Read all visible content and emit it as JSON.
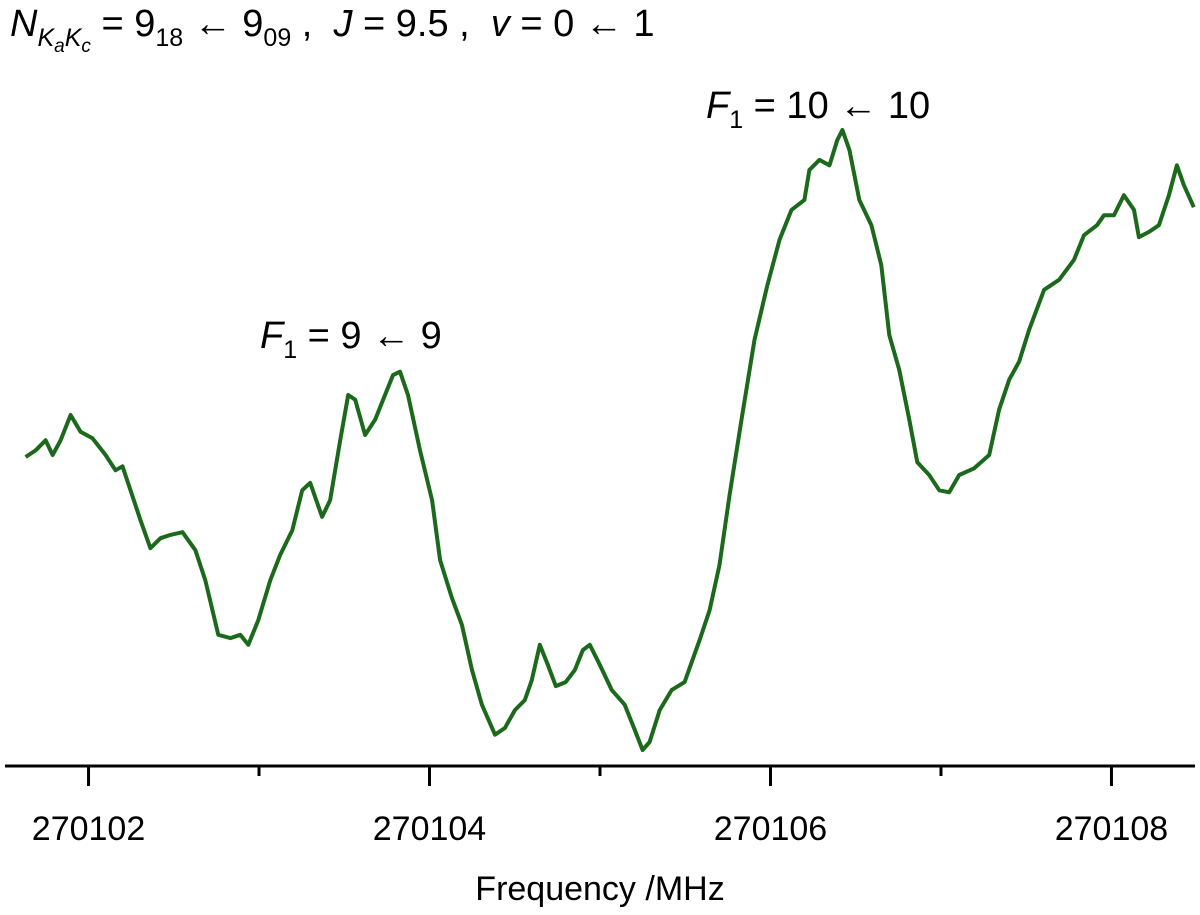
{
  "chart_data": {
    "type": "line",
    "title": [
      "N",
      "K",
      "a",
      "K",
      "c",
      " = 9",
      "18",
      " ← 9",
      "09",
      " ,  ",
      "J",
      " = 9.5 ,  ",
      "v",
      " = 0 ← 1"
    ],
    "annotations": [
      [
        "F",
        "1",
        " = 9 ← 9"
      ],
      [
        "F",
        "1",
        " = 10 ← 10"
      ]
    ],
    "x_label": "Frequency /MHz",
    "color": "#1b6a1b",
    "xlim": [
      270101.51,
      270108.49
    ],
    "xticks": [
      270102,
      270104,
      270106,
      270108
    ],
    "xminor": [
      270103,
      270105,
      270107
    ],
    "ylim": [
      0,
      100
    ],
    "x": [
      270101.631,
      270101.69,
      270101.748,
      270101.789,
      270101.836,
      270101.895,
      270101.953,
      270102.023,
      270102.1,
      270102.158,
      270102.199,
      270102.246,
      270102.305,
      270102.363,
      270102.422,
      270102.48,
      270102.551,
      270102.627,
      270102.685,
      270102.761,
      270102.832,
      270102.89,
      270102.937,
      270102.996,
      270103.066,
      270103.124,
      270103.195,
      270103.253,
      270103.3,
      270103.37,
      270103.417,
      270103.476,
      270103.523,
      270103.564,
      270103.622,
      270103.681,
      270103.739,
      270103.786,
      270103.827,
      270103.874,
      270103.944,
      270104.015,
      270104.062,
      270104.132,
      270104.19,
      270104.249,
      270104.307,
      270104.384,
      270104.442,
      270104.501,
      270104.559,
      270104.6,
      270104.647,
      270104.694,
      270104.741,
      270104.799,
      270104.852,
      270104.899,
      270104.94,
      270104.999,
      270105.069,
      270105.145,
      270105.204,
      270105.25,
      270105.291,
      270105.35,
      270105.42,
      270105.496,
      270105.584,
      270105.643,
      270105.701,
      270105.76,
      270105.83,
      270105.906,
      270105.982,
      270106.053,
      270106.123,
      270106.199,
      270106.228,
      270106.287,
      270106.346,
      270106.392,
      270106.422,
      270106.463,
      270106.521,
      270106.592,
      270106.65,
      270106.697,
      270106.755,
      270106.814,
      270106.861,
      270106.931,
      270106.99,
      270107.048,
      270107.107,
      270107.195,
      270107.283,
      270107.341,
      270107.4,
      270107.458,
      270107.517,
      270107.605,
      270107.693,
      270107.78,
      270107.839,
      270107.915,
      270107.956,
      270108.015,
      270108.073,
      270108.132,
      270108.161,
      270108.22,
      270108.278,
      270108.337,
      270108.384,
      270108.425,
      270108.483
    ],
    "values": [
      46.4,
      47.4,
      48.9,
      46.7,
      48.9,
      52.7,
      50.2,
      49.2,
      46.7,
      44.4,
      45.0,
      41.4,
      36.9,
      32.7,
      34.2,
      34.7,
      35.1,
      32.4,
      27.9,
      19.7,
      19.2,
      19.7,
      18.2,
      21.9,
      27.9,
      31.7,
      35.4,
      41.4,
      42.5,
      37.4,
      39.9,
      48.9,
      55.7,
      55.0,
      49.7,
      52.0,
      55.7,
      58.7,
      59.2,
      55.7,
      47.4,
      39.9,
      30.9,
      25.2,
      21.2,
      14.4,
      9.2,
      4.7,
      5.7,
      8.4,
      9.9,
      12.9,
      18.2,
      15.2,
      12.0,
      12.6,
      14.4,
      17.4,
      18.2,
      15.2,
      11.4,
      9.2,
      5.4,
      2.4,
      3.6,
      8.4,
      11.4,
      12.6,
      18.9,
      23.4,
      30.2,
      40.7,
      52.0,
      64.0,
      72.2,
      79.0,
      83.5,
      85.0,
      89.5,
      91.0,
      90.2,
      94.0,
      95.5,
      92.5,
      85.0,
      81.2,
      75.2,
      64.7,
      59.5,
      52.0,
      45.6,
      43.7,
      41.4,
      41.1,
      43.7,
      44.7,
      46.7,
      53.5,
      58.0,
      60.7,
      65.5,
      71.5,
      73.0,
      76.0,
      79.7,
      81.2,
      82.7,
      82.7,
      85.7,
      83.5,
      79.4,
      80.2,
      81.2,
      85.7,
      90.2,
      87.2,
      83.9
    ]
  }
}
